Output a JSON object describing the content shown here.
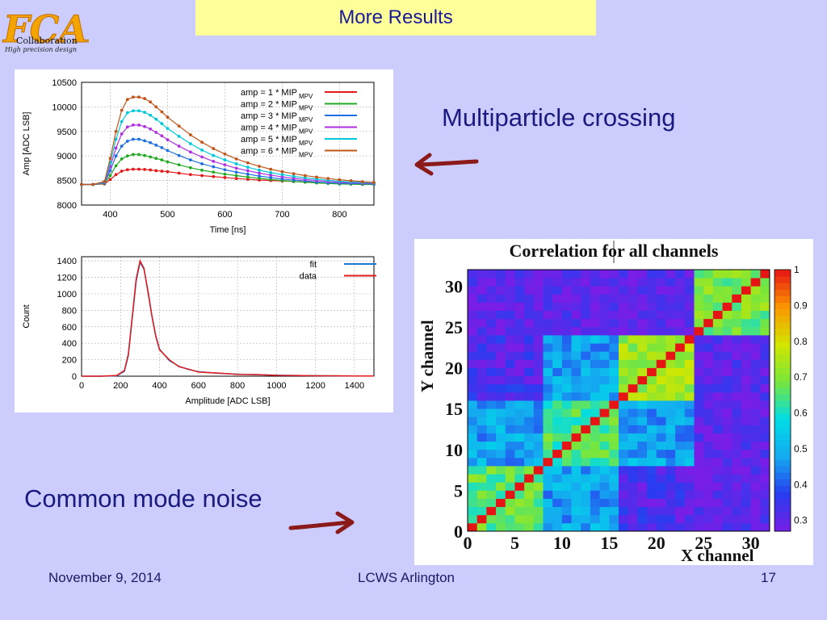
{
  "slide": {
    "title": "More Results",
    "logo": {
      "word": "Collaboration",
      "sub": "High precision design",
      "brand": "FCAL"
    },
    "caption_multiparticle": "Multiparticle crossing",
    "caption_noise": "Common mode noise",
    "footer": {
      "date": "November 9, 2014",
      "venue": "LCWS Arlington",
      "page": "17"
    }
  },
  "chart_data": [
    {
      "type": "line",
      "title": "",
      "xlabel": "Time [ns]",
      "ylabel": "Amp [ADC LSB]",
      "xlim": [
        350,
        860
      ],
      "ylim": [
        8000,
        10500
      ],
      "xticks": [
        400,
        500,
        600,
        700,
        800
      ],
      "yticks": [
        8000,
        8500,
        9000,
        9500,
        10000,
        10500
      ],
      "legend_position": "top-right",
      "legend_suffix": "MPV",
      "x": [
        350,
        370,
        390,
        400,
        410,
        420,
        430,
        440,
        450,
        460,
        470,
        480,
        490,
        500,
        520,
        540,
        560,
        580,
        600,
        620,
        640,
        660,
        680,
        700,
        720,
        740,
        760,
        780,
        800,
        820,
        840,
        860
      ],
      "series": [
        {
          "name": "amp = 1 * MIP",
          "color": "#e31a1c",
          "values": [
            8420,
            8420,
            8430,
            8520,
            8620,
            8690,
            8720,
            8730,
            8730,
            8725,
            8715,
            8700,
            8690,
            8680,
            8650,
            8620,
            8600,
            8580,
            8560,
            8540,
            8525,
            8510,
            8500,
            8490,
            8480,
            8470,
            8460,
            8450,
            8440,
            8435,
            8430,
            8430
          ]
        },
        {
          "name": "amp = 2 * MIP",
          "color": "#22aa22",
          "values": [
            8420,
            8420,
            8440,
            8600,
            8800,
            8940,
            9000,
            9030,
            9030,
            9010,
            8980,
            8950,
            8920,
            8880,
            8820,
            8760,
            8710,
            8670,
            8630,
            8600,
            8570,
            8545,
            8520,
            8500,
            8480,
            8465,
            8450,
            8440,
            8430,
            8425,
            8420,
            8420
          ]
        },
        {
          "name": "amp = 3 * MIP",
          "color": "#1f6fe0",
          "values": [
            8420,
            8420,
            8450,
            8700,
            9000,
            9200,
            9300,
            9340,
            9340,
            9310,
            9270,
            9220,
            9170,
            9110,
            9010,
            8920,
            8840,
            8780,
            8720,
            8670,
            8630,
            8590,
            8560,
            8530,
            8510,
            8490,
            8470,
            8455,
            8445,
            8440,
            8435,
            8430
          ]
        },
        {
          "name": "amp = 4 * MIP",
          "color": "#b030e0",
          "values": [
            8420,
            8420,
            8460,
            8780,
            9160,
            9450,
            9590,
            9630,
            9630,
            9600,
            9550,
            9480,
            9410,
            9330,
            9200,
            9080,
            8980,
            8890,
            8820,
            8750,
            8700,
            8650,
            8610,
            8575,
            8545,
            8520,
            8500,
            8480,
            8465,
            8455,
            8445,
            8440
          ]
        },
        {
          "name": "amp = 5 * MIP",
          "color": "#00c8d8",
          "values": [
            8420,
            8420,
            8470,
            8860,
            9340,
            9700,
            9880,
            9920,
            9920,
            9890,
            9830,
            9750,
            9660,
            9560,
            9400,
            9250,
            9120,
            9010,
            8920,
            8840,
            8770,
            8710,
            8660,
            8620,
            8585,
            8555,
            8530,
            8505,
            8485,
            8470,
            8460,
            8450
          ]
        },
        {
          "name": "amp = 6 * MIP",
          "color": "#c0551a",
          "values": [
            8420,
            8420,
            8480,
            8950,
            9500,
            9930,
            10150,
            10200,
            10200,
            10170,
            10100,
            10000,
            9900,
            9790,
            9610,
            9430,
            9280,
            9150,
            9040,
            8940,
            8860,
            8790,
            8730,
            8680,
            8640,
            8600,
            8570,
            8540,
            8515,
            8495,
            8475,
            8460
          ]
        }
      ]
    },
    {
      "type": "line",
      "title": "",
      "xlabel": "Amplitude [ADC LSB]",
      "ylabel": "Count",
      "xlim": [
        0,
        1500
      ],
      "ylim": [
        0,
        1450
      ],
      "xticks": [
        0,
        200,
        400,
        600,
        800,
        1000,
        1200,
        1400
      ],
      "yticks": [
        0,
        200,
        400,
        600,
        800,
        1000,
        1200,
        1400
      ],
      "legend_position": "top-right",
      "x": [
        0,
        100,
        180,
        220,
        240,
        260,
        280,
        300,
        320,
        340,
        360,
        380,
        400,
        450,
        500,
        550,
        600,
        700,
        800,
        900,
        1000,
        1100,
        1200,
        1300,
        1400,
        1500
      ],
      "series": [
        {
          "name": "fit",
          "color": "#1f77d0",
          "values": [
            0,
            0,
            5,
            60,
            250,
            700,
            1150,
            1380,
            1300,
            1050,
            750,
            500,
            330,
            190,
            120,
            80,
            55,
            35,
            25,
            18,
            12,
            8,
            6,
            4,
            3,
            2
          ]
        },
        {
          "name": "data",
          "color": "#e31a1c",
          "values": [
            0,
            0,
            8,
            70,
            270,
            720,
            1180,
            1400,
            1310,
            1030,
            740,
            490,
            320,
            200,
            115,
            85,
            50,
            38,
            22,
            20,
            10,
            9,
            5,
            5,
            2,
            2
          ]
        }
      ]
    },
    {
      "type": "heatmap",
      "title": "Correlation for all channels",
      "xlabel": "X channel",
      "ylabel": "Y channel",
      "xlim": [
        0,
        32
      ],
      "ylim": [
        0,
        32
      ],
      "xticks": [
        0,
        5,
        10,
        15,
        20,
        25,
        30
      ],
      "yticks": [
        0,
        5,
        10,
        15,
        20,
        25,
        30
      ],
      "colorbar_ticks": [
        0.3,
        0.4,
        0.5,
        0.6,
        0.7,
        0.8,
        0.9,
        1
      ],
      "blocks": [
        {
          "x_range": [
            0,
            8
          ],
          "y_range": [
            0,
            8
          ],
          "level": 0.68
        },
        {
          "x_range": [
            8,
            16
          ],
          "y_range": [
            8,
            16
          ],
          "level": 0.66
        },
        {
          "x_range": [
            16,
            24
          ],
          "y_range": [
            16,
            24
          ],
          "level": 0.74
        },
        {
          "x_range": [
            24,
            32
          ],
          "y_range": [
            24,
            32
          ],
          "level": 0.7
        }
      ],
      "diagonal_value": 1,
      "offdiag_near": 0.5,
      "offdiag_far": 0.35
    }
  ]
}
